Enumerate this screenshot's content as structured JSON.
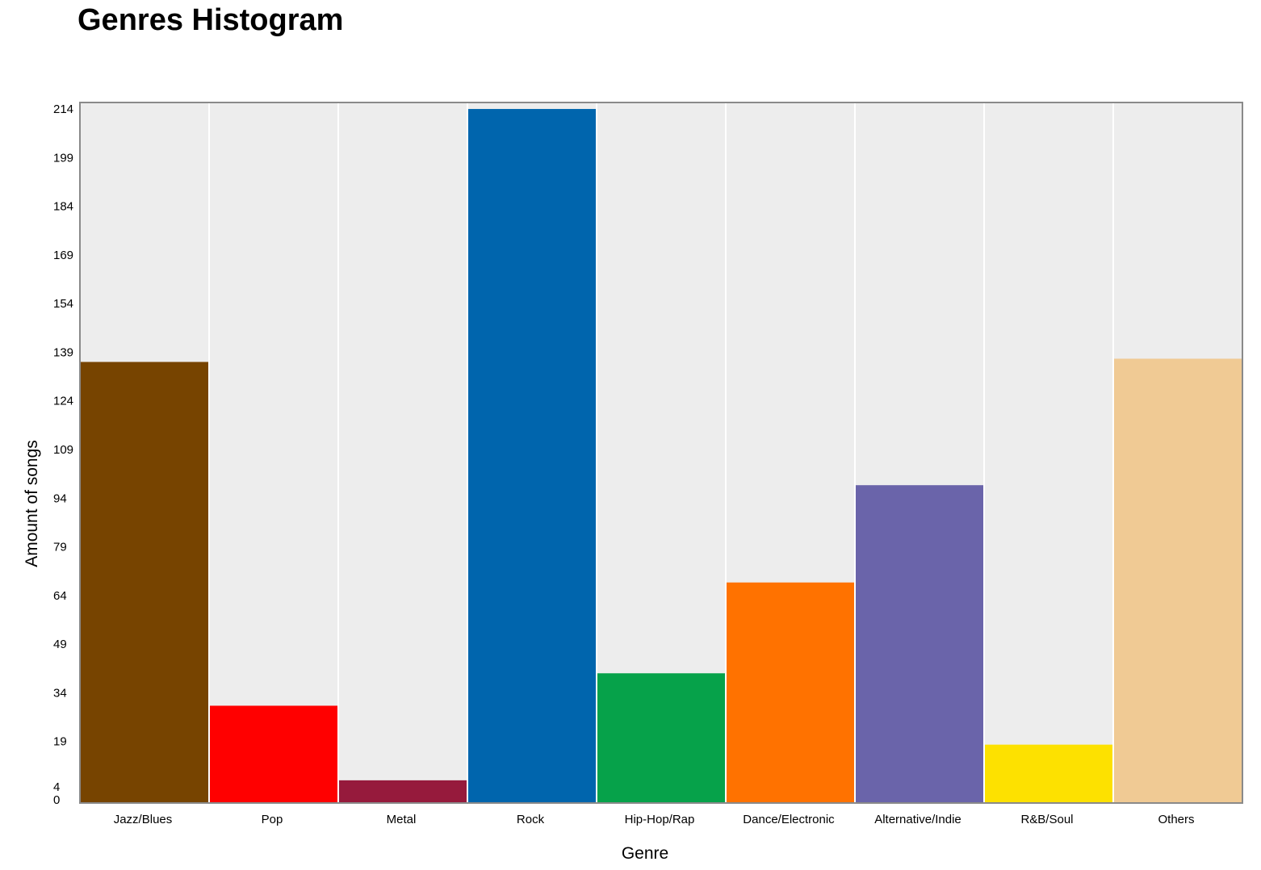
{
  "chart_data": {
    "type": "bar",
    "title": "Genres Histogram",
    "xlabel": "Genre",
    "ylabel": "Amount of songs",
    "categories": [
      "Jazz/Blues",
      "Pop",
      "Metal",
      "Rock",
      "Hip-Hop/Rap",
      "Dance/Electronic",
      "Alternative/Indie",
      "R&B/Soul",
      "Others"
    ],
    "values": [
      136,
      30,
      7,
      214,
      40,
      68,
      98,
      18,
      137
    ],
    "colors": [
      "#774400",
      "#ff0000",
      "#961a3c",
      "#0065ad",
      "#06a24a",
      "#ff7200",
      "#6a64aa",
      "#fde100",
      "#f0ca94"
    ],
    "yticks": [
      0,
      4,
      19,
      34,
      49,
      64,
      79,
      94,
      109,
      124,
      139,
      154,
      169,
      184,
      199,
      214
    ],
    "ylim": [
      0,
      216
    ],
    "background": "#ededed",
    "grid": false,
    "legend": "none"
  }
}
